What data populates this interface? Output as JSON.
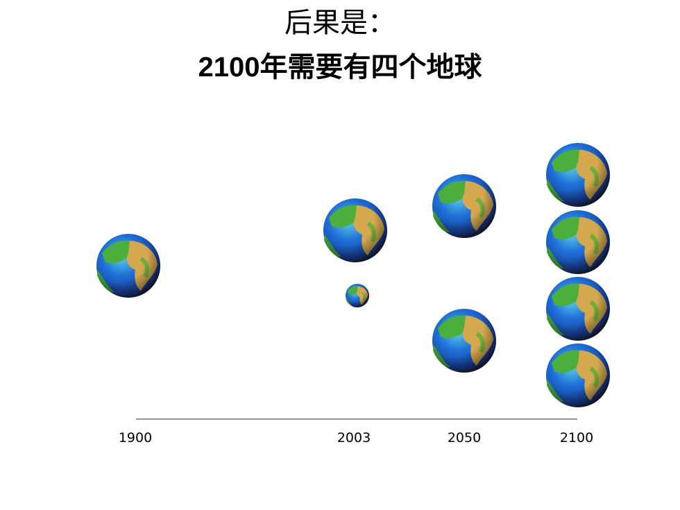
{
  "title": {
    "line1": "后果是：",
    "line2": "2100年需要有四个地球"
  },
  "timeline": {
    "labels": [
      "1900",
      "2003",
      "2050",
      "2100"
    ]
  }
}
